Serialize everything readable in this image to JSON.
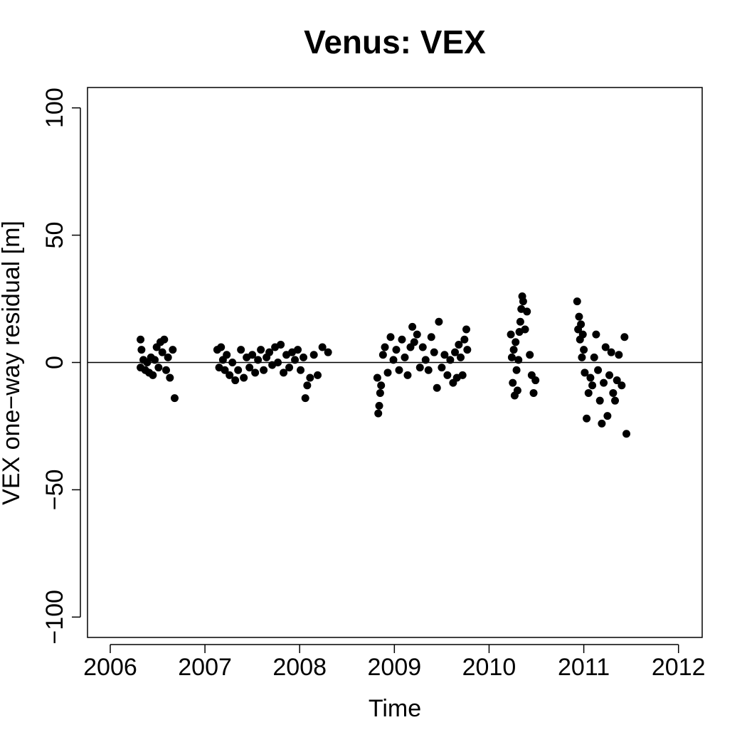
{
  "chart_data": {
    "type": "scatter",
    "title": "Venus: VEX",
    "x_label": "Time",
    "y_label": "VEX one−way residual [m]",
    "color": "#000000",
    "reference_line": 0,
    "xlim": [
      2005.76,
      2012.25
    ],
    "xticks": [
      2006,
      2007,
      2008,
      2009,
      2010,
      2011,
      2012
    ],
    "ylim": [
      -108,
      108
    ],
    "yticks": [
      {
        "value": -100,
        "label": "−100"
      },
      {
        "value": -50,
        "label": "−50"
      },
      0,
      50,
      100
    ],
    "x": [
      2006.32,
      2006.32,
      2006.33,
      2006.35,
      2006.37,
      2006.39,
      2006.41,
      2006.43,
      2006.45,
      2006.47,
      2006.49,
      2006.51,
      2006.53,
      2006.55,
      2006.57,
      2006.59,
      2006.61,
      2006.63,
      2006.66,
      2006.68,
      2007.13,
      2007.15,
      2007.17,
      2007.19,
      2007.21,
      2007.23,
      2007.26,
      2007.29,
      2007.32,
      2007.35,
      2007.38,
      2007.41,
      2007.44,
      2007.47,
      2007.5,
      2007.53,
      2007.56,
      2007.59,
      2007.62,
      2007.65,
      2007.68,
      2007.71,
      2007.74,
      2007.77,
      2007.8,
      2007.83,
      2007.86,
      2007.89,
      2007.92,
      2007.95,
      2007.98,
      2008.01,
      2008.04,
      2008.06,
      2008.08,
      2008.11,
      2008.15,
      2008.19,
      2008.24,
      2008.3,
      2008.82,
      2008.83,
      2008.84,
      2008.85,
      2008.86,
      2008.88,
      2008.9,
      2008.93,
      2008.96,
      2008.99,
      2009.02,
      2009.05,
      2009.08,
      2009.11,
      2009.14,
      2009.17,
      2009.19,
      2009.21,
      2009.24,
      2009.27,
      2009.3,
      2009.33,
      2009.36,
      2009.39,
      2009.42,
      2009.45,
      2009.47,
      2009.5,
      2009.53,
      2009.56,
      2009.59,
      2009.62,
      2009.64,
      2009.66,
      2009.68,
      2009.7,
      2009.72,
      2009.74,
      2009.76,
      2009.77,
      2010.23,
      2010.24,
      2010.25,
      2010.26,
      2010.27,
      2010.28,
      2010.29,
      2010.3,
      2010.31,
      2010.32,
      2010.33,
      2010.34,
      2010.35,
      2010.36,
      2010.38,
      2010.4,
      2010.43,
      2010.45,
      2010.47,
      2010.49,
      2010.93,
      2010.94,
      2010.95,
      2010.96,
      2010.97,
      2010.98,
      2010.99,
      2011.0,
      2011.01,
      2011.03,
      2011.05,
      2011.07,
      2011.09,
      2011.11,
      2011.13,
      2011.15,
      2011.17,
      2011.19,
      2011.21,
      2011.23,
      2011.25,
      2011.27,
      2011.29,
      2011.31,
      2011.33,
      2011.35,
      2011.37,
      2011.4,
      2011.43,
      2011.45
    ],
    "values": [
      9,
      -2,
      5,
      1,
      -3,
      0,
      -4,
      2,
      -5,
      1,
      6,
      -2,
      8,
      4,
      9,
      -3,
      2,
      -6,
      5,
      -14,
      5,
      -2,
      6,
      1,
      -3,
      3,
      -5,
      0,
      -7,
      -3,
      5,
      -6,
      2,
      -2,
      3,
      -4,
      1,
      5,
      -3,
      2,
      4,
      -1,
      6,
      0,
      7,
      -4,
      3,
      -2,
      4,
      1,
      5,
      -3,
      2,
      -14,
      -9,
      -6,
      3,
      -5,
      6,
      4,
      -6,
      -20,
      -17,
      -12,
      -9,
      3,
      6,
      -4,
      10,
      1,
      5,
      -3,
      9,
      2,
      -5,
      6,
      14,
      8,
      11,
      -2,
      6,
      1,
      -3,
      10,
      4,
      -10,
      16,
      -2,
      3,
      -5,
      1,
      -8,
      4,
      -6,
      7,
      2,
      -5,
      9,
      13,
      5,
      11,
      2,
      -8,
      5,
      -13,
      8,
      -3,
      -11,
      1,
      12,
      16,
      21,
      26,
      24,
      13,
      20,
      3,
      -5,
      -12,
      -7,
      24,
      13,
      18,
      9,
      15,
      2,
      11,
      5,
      -4,
      -22,
      -12,
      -6,
      -9,
      2,
      11,
      -3,
      -15,
      -24,
      -8,
      6,
      -21,
      -5,
      4,
      -12,
      -15,
      -7,
      3,
      -9,
      10,
      -28
    ]
  }
}
